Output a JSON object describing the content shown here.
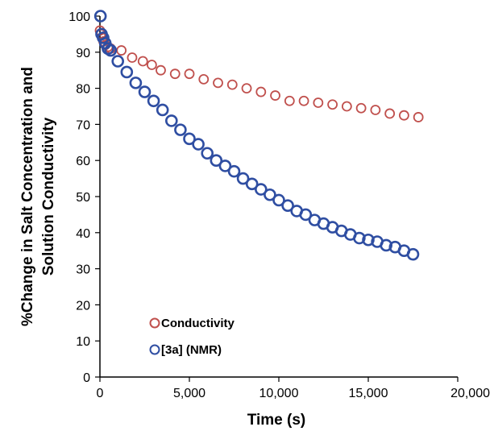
{
  "chart_data": {
    "type": "scatter",
    "title": "",
    "xlabel": "Time (s)",
    "ylabel_lines": [
      "%Change in Salt Concentration and",
      "Solution Conductivity"
    ],
    "xlim": [
      0,
      20000
    ],
    "ylim": [
      0,
      100
    ],
    "x_ticks": [
      0,
      5000,
      10000,
      15000,
      20000
    ],
    "x_tick_labels": [
      "0",
      "5,000",
      "10,000",
      "15,000",
      "20,000"
    ],
    "y_ticks": [
      0,
      10,
      20,
      30,
      40,
      50,
      60,
      70,
      80,
      90,
      100
    ],
    "y_tick_labels": [
      "0",
      "10",
      "20",
      "30",
      "40",
      "50",
      "60",
      "70",
      "80",
      "90",
      "100"
    ],
    "grid": false,
    "legend_position": "bottom-left",
    "series": [
      {
        "name": "Conductivity",
        "color": "#c0504d",
        "marker": "open-circle",
        "x": [
          0,
          60,
          120,
          200,
          300,
          450,
          600,
          1200,
          1800,
          2400,
          2900,
          3400,
          4200,
          5000,
          5800,
          6600,
          7400,
          8200,
          9000,
          9800,
          10600,
          11400,
          12200,
          13000,
          13800,
          14600,
          15400,
          16200,
          17000,
          17800
        ],
        "y": [
          96,
          95,
          94,
          93,
          92,
          91.5,
          91,
          90.5,
          88.5,
          87.5,
          86.5,
          85,
          84,
          84,
          82.5,
          81.5,
          81,
          80,
          79,
          78,
          76.5,
          76.5,
          76,
          75.5,
          75,
          74.5,
          74,
          73,
          72.5,
          72
        ]
      },
      {
        "name": "[3a] (NMR)",
        "color": "#2f4ea2",
        "marker": "open-circle",
        "x": [
          30,
          90,
          180,
          300,
          450,
          600,
          1000,
          1500,
          2000,
          2500,
          3000,
          3500,
          4000,
          4500,
          5000,
          5500,
          6000,
          6500,
          7000,
          7500,
          8000,
          8500,
          9000,
          9500,
          10000,
          10500,
          11000,
          11500,
          12000,
          12500,
          13000,
          13500,
          14000,
          14500,
          15000,
          15500,
          16000,
          16500,
          17000,
          17500
        ],
        "y": [
          100,
          95,
          94,
          92.5,
          91,
          90.5,
          87.5,
          84.5,
          81.5,
          79,
          76.5,
          74,
          71,
          68.5,
          66,
          64.5,
          62,
          60,
          58.5,
          57,
          55,
          53.5,
          52,
          50.5,
          49,
          47.5,
          46,
          45,
          43.5,
          42.5,
          41.5,
          40.5,
          39.5,
          38.5,
          38,
          37.5,
          36.5,
          36,
          35,
          34
        ]
      }
    ]
  }
}
